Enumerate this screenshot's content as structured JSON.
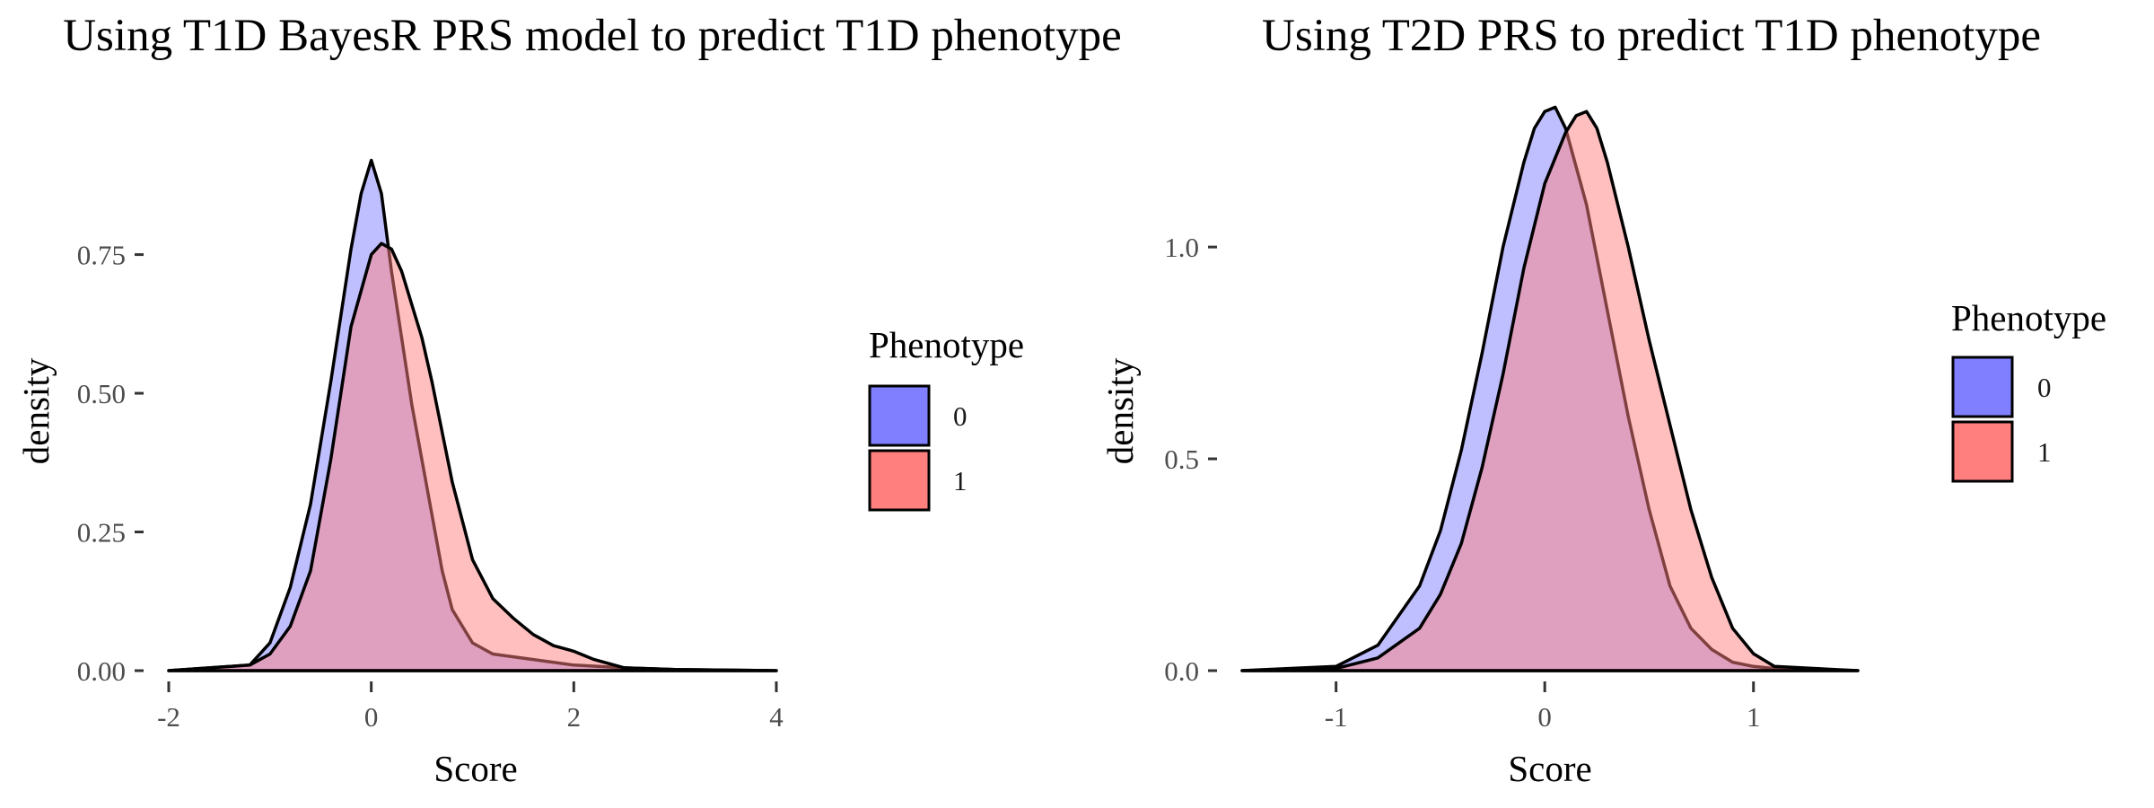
{
  "colors": {
    "phenotype_0": "#7f7fff",
    "phenotype_1": "#ff7f7f",
    "overlap": "#c03e7e",
    "outline": "#000000",
    "tick_text": "#4d4d4d"
  },
  "chart_data": [
    {
      "type": "area",
      "title": "Using T1D BayesR PRS model to predict T1D phenotype",
      "xlabel": "Score",
      "ylabel": "density",
      "xlim": [
        -2,
        4
      ],
      "ylim": [
        0,
        0.95
      ],
      "xticks": [
        -2,
        0,
        2,
        4
      ],
      "yticks": [
        0,
        0.25,
        0.5,
        0.75
      ],
      "ytick_labels": [
        "0.00",
        "0.25",
        "0.50",
        "0.75"
      ],
      "grid": false,
      "legend": {
        "title": "Phenotype",
        "position": "right",
        "entries": [
          "0",
          "1"
        ]
      },
      "series": [
        {
          "name": "0",
          "x": [
            -2.0,
            -1.2,
            -1.0,
            -0.8,
            -0.6,
            -0.4,
            -0.2,
            -0.1,
            0.0,
            0.1,
            0.2,
            0.4,
            0.6,
            0.7,
            0.8,
            1.0,
            1.2,
            1.6,
            2.0,
            2.5,
            3.0,
            4.0
          ],
          "y": [
            0.0,
            0.01,
            0.05,
            0.15,
            0.3,
            0.52,
            0.76,
            0.86,
            0.92,
            0.86,
            0.72,
            0.48,
            0.28,
            0.18,
            0.11,
            0.05,
            0.03,
            0.02,
            0.01,
            0.005,
            0.002,
            0.0
          ]
        },
        {
          "name": "1",
          "x": [
            -2.0,
            -1.2,
            -1.0,
            -0.8,
            -0.6,
            -0.4,
            -0.3,
            -0.2,
            0.0,
            0.1,
            0.2,
            0.3,
            0.5,
            0.6,
            0.8,
            1.0,
            1.2,
            1.4,
            1.6,
            1.8,
            2.0,
            2.2,
            2.5,
            3.0,
            4.0
          ],
          "y": [
            0.0,
            0.01,
            0.03,
            0.08,
            0.18,
            0.38,
            0.5,
            0.62,
            0.75,
            0.77,
            0.76,
            0.72,
            0.6,
            0.52,
            0.34,
            0.2,
            0.13,
            0.095,
            0.065,
            0.045,
            0.035,
            0.02,
            0.005,
            0.002,
            0.0
          ]
        }
      ]
    },
    {
      "type": "area",
      "title": "Using T2D PRS to predict T1D phenotype",
      "xlabel": "Score",
      "ylabel": "density",
      "xlim": [
        -1.45,
        1.5
      ],
      "ylim": [
        0,
        1.35
      ],
      "xticks": [
        -1,
        0,
        1
      ],
      "yticks": [
        0,
        0.5,
        1.0
      ],
      "ytick_labels": [
        "0.0",
        "0.5",
        "1.0"
      ],
      "grid": false,
      "legend": {
        "title": "Phenotype",
        "position": "right",
        "entries": [
          "0",
          "1"
        ]
      },
      "series": [
        {
          "name": "0",
          "x": [
            -1.45,
            -1.0,
            -0.8,
            -0.6,
            -0.5,
            -0.4,
            -0.3,
            -0.2,
            -0.1,
            -0.05,
            0.0,
            0.05,
            0.1,
            0.2,
            0.3,
            0.4,
            0.5,
            0.6,
            0.7,
            0.8,
            0.9,
            1.0,
            1.1,
            1.5
          ],
          "y": [
            0.0,
            0.01,
            0.06,
            0.2,
            0.33,
            0.52,
            0.75,
            1.0,
            1.2,
            1.28,
            1.32,
            1.33,
            1.28,
            1.1,
            0.85,
            0.6,
            0.38,
            0.2,
            0.1,
            0.05,
            0.02,
            0.01,
            0.005,
            0.0
          ]
        },
        {
          "name": "1",
          "x": [
            -1.45,
            -1.0,
            -0.8,
            -0.6,
            -0.5,
            -0.4,
            -0.3,
            -0.2,
            -0.1,
            0.0,
            0.1,
            0.15,
            0.2,
            0.25,
            0.3,
            0.4,
            0.5,
            0.6,
            0.7,
            0.8,
            0.9,
            1.0,
            1.1,
            1.5
          ],
          "y": [
            0.0,
            0.005,
            0.03,
            0.1,
            0.18,
            0.3,
            0.48,
            0.7,
            0.95,
            1.15,
            1.27,
            1.31,
            1.32,
            1.28,
            1.2,
            1.0,
            0.78,
            0.58,
            0.38,
            0.22,
            0.1,
            0.04,
            0.01,
            0.0
          ]
        }
      ]
    }
  ]
}
